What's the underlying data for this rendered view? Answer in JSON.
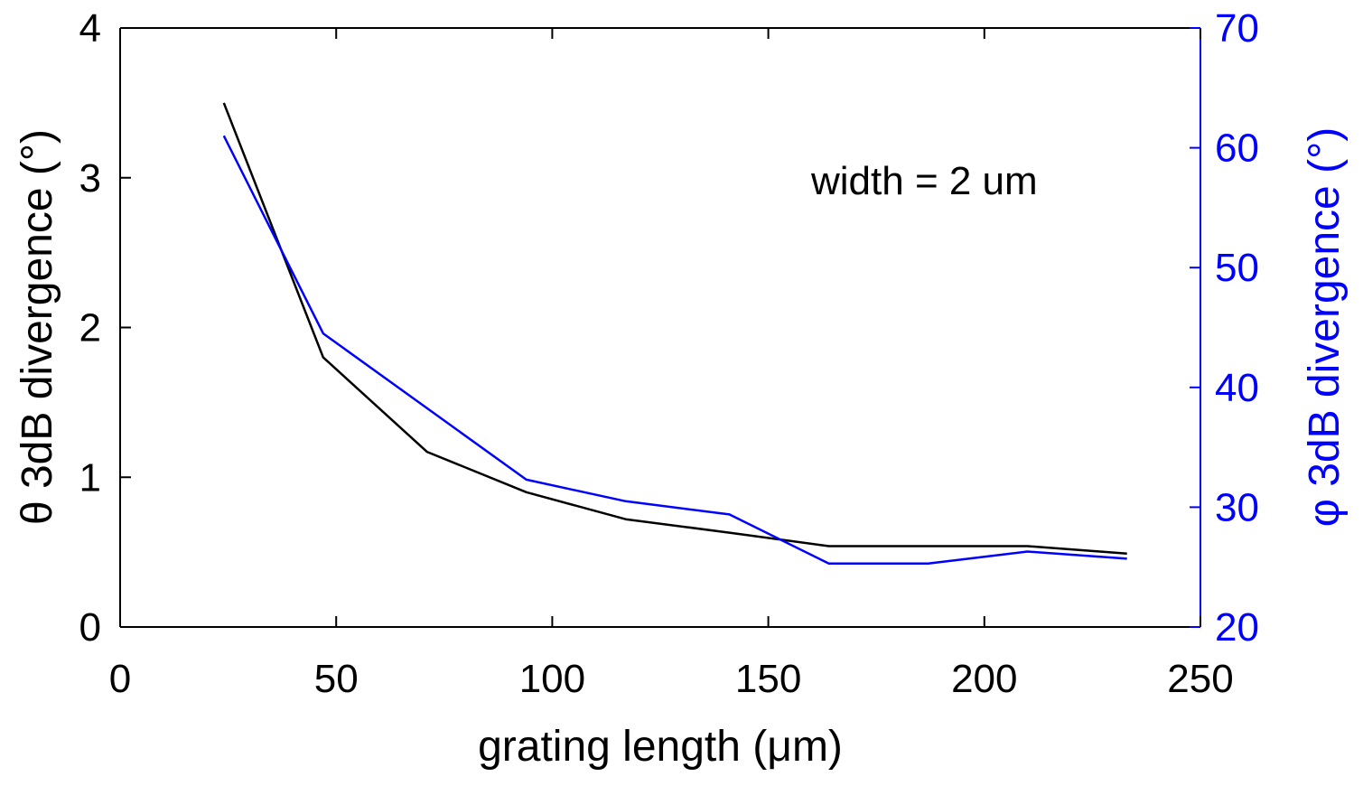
{
  "chart_data": {
    "type": "line",
    "title": "",
    "xlabel": "grating length (μm)",
    "ylabel_left": "θ 3dB divergence (°)",
    "ylabel_right": "φ 3dB divergence (°)",
    "xlim": [
      0,
      250
    ],
    "ylim_left": [
      0,
      4
    ],
    "ylim_right": [
      20,
      70
    ],
    "x_ticks": [
      0,
      50,
      100,
      150,
      200,
      250
    ],
    "y_left_ticks": [
      0,
      1,
      2,
      3,
      4
    ],
    "y_right_ticks": [
      20,
      30,
      40,
      50,
      60,
      70
    ],
    "grid": false,
    "annotation": "width = 2 um",
    "colors": {
      "left_axis": "#000000",
      "right_axis": "#0000ff"
    },
    "series": [
      {
        "axis": "left",
        "color": "#000000",
        "x": [
          24,
          47,
          71,
          94,
          117,
          141,
          164,
          187,
          210,
          233
        ],
        "y": [
          3.5,
          1.8,
          1.17,
          0.9,
          0.72,
          0.63,
          0.54,
          0.54,
          0.54,
          0.49
        ]
      },
      {
        "axis": "right",
        "color": "#0000ff",
        "x": [
          24,
          47,
          94,
          117,
          141,
          164,
          187,
          210,
          233
        ],
        "y": [
          61,
          44.5,
          32.3,
          30.5,
          29.4,
          25.3,
          25.3,
          26.3,
          25.7
        ]
      }
    ]
  }
}
